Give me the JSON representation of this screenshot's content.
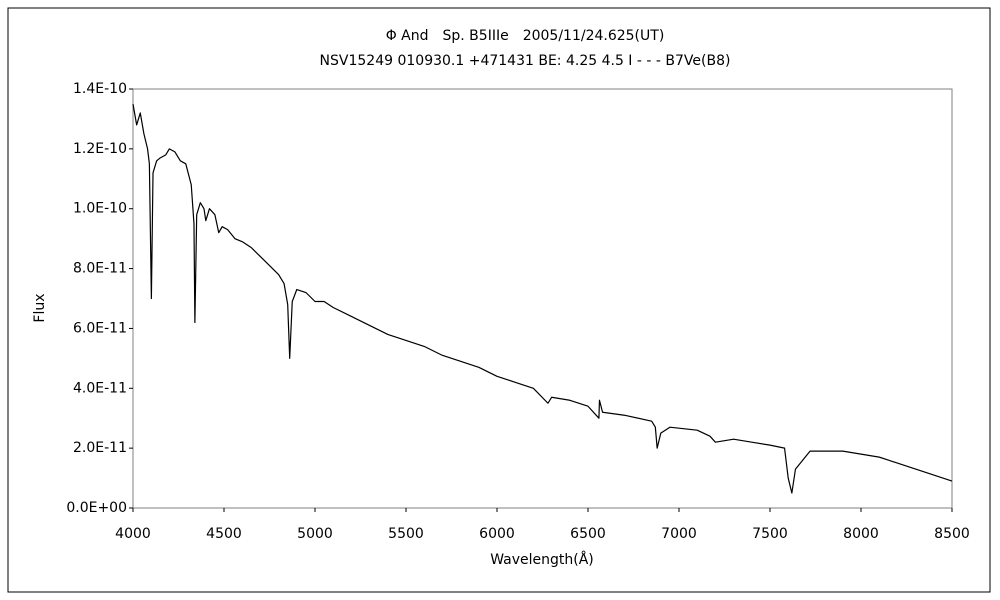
{
  "chart_data": {
    "type": "line",
    "title": "Φ And　Sp. B5IIIe　2005/11/24.625(UT)",
    "subtitle": "NSV15249 010930.1 +471431 BE: 4.25 4.5 I - - - B7Ve(B8)",
    "x_label": "Wavelength(Å)",
    "y_label": "Flux",
    "xlim": [
      4000,
      8500
    ],
    "xticks": [
      4000,
      4500,
      5000,
      5500,
      6000,
      6500,
      7000,
      7500,
      8000,
      8500
    ],
    "ylim": [
      0,
      1.4e-10
    ],
    "yticks": [
      {
        "value": 0,
        "label": "0.0E+00"
      },
      {
        "value": 2e-11,
        "label": "2.0E-11"
      },
      {
        "value": 4e-11,
        "label": "4.0E-11"
      },
      {
        "value": 6e-11,
        "label": "6.0E-11"
      },
      {
        "value": 8e-11,
        "label": "8.0E-11"
      },
      {
        "value": 1e-10,
        "label": "1.0E-10"
      },
      {
        "value": 1.2e-10,
        "label": "1.2E-10"
      },
      {
        "value": 1.4e-10,
        "label": "1.4E-10"
      }
    ],
    "grid": false,
    "series": [
      {
        "color": "#000000",
        "x": [
          4000,
          4020,
          4040,
          4060,
          4080,
          4090,
          4101,
          4110,
          4130,
          4150,
          4180,
          4200,
          4230,
          4260,
          4290,
          4320,
          4335,
          4340,
          4350,
          4370,
          4390,
          4400,
          4420,
          4450,
          4471,
          4490,
          4520,
          4560,
          4600,
          4650,
          4700,
          4750,
          4800,
          4830,
          4850,
          4861,
          4875,
          4900,
          4950,
          5000,
          5050,
          5100,
          5200,
          5300,
          5400,
          5500,
          5600,
          5700,
          5800,
          5900,
          6000,
          6100,
          6200,
          6280,
          6300,
          6400,
          6500,
          6560,
          6563,
          6580,
          6700,
          6850,
          6870,
          6880,
          6900,
          6950,
          7100,
          7170,
          7200,
          7300,
          7400,
          7500,
          7580,
          7600,
          7620,
          7640,
          7680,
          7720,
          7800,
          7900,
          8000,
          8100,
          8150,
          8200,
          8300,
          8400,
          8500
        ],
        "values": [
          1.35e-10,
          1.28e-10,
          1.32e-10,
          1.25e-10,
          1.2e-10,
          1.15e-10,
          7e-11,
          1.12e-10,
          1.16e-10,
          1.17e-10,
          1.18e-10,
          1.2e-10,
          1.19e-10,
          1.16e-10,
          1.15e-10,
          1.08e-10,
          9.5e-11,
          6.2e-11,
          9.8e-11,
          1.02e-10,
          1e-10,
          9.6e-11,
          1e-10,
          9.8e-11,
          9.2e-11,
          9.4e-11,
          9.3e-11,
          9e-11,
          8.9e-11,
          8.7e-11,
          8.4e-11,
          8.1e-11,
          7.8e-11,
          7.5e-11,
          6.8e-11,
          5e-11,
          6.9e-11,
          7.3e-11,
          7.2e-11,
          6.9e-11,
          6.9e-11,
          6.7e-11,
          6.4e-11,
          6.1e-11,
          5.8e-11,
          5.6e-11,
          5.4e-11,
          5.1e-11,
          4.9e-11,
          4.7e-11,
          4.4e-11,
          4.2e-11,
          4e-11,
          3.5e-11,
          3.7e-11,
          3.6e-11,
          3.4e-11,
          3e-11,
          3.6e-11,
          3.2e-11,
          3.1e-11,
          2.9e-11,
          2.7e-11,
          2e-11,
          2.5e-11,
          2.7e-11,
          2.6e-11,
          2.4e-11,
          2.2e-11,
          2.3e-11,
          2.2e-11,
          2.1e-11,
          2e-11,
          1e-11,
          5e-12,
          1.3e-11,
          1.6e-11,
          1.9e-11,
          1.9e-11,
          1.9e-11,
          1.8e-11,
          1.7e-11,
          1.6e-11,
          1.5e-11,
          1.3e-11,
          1.1e-11,
          9e-12
        ]
      }
    ]
  }
}
